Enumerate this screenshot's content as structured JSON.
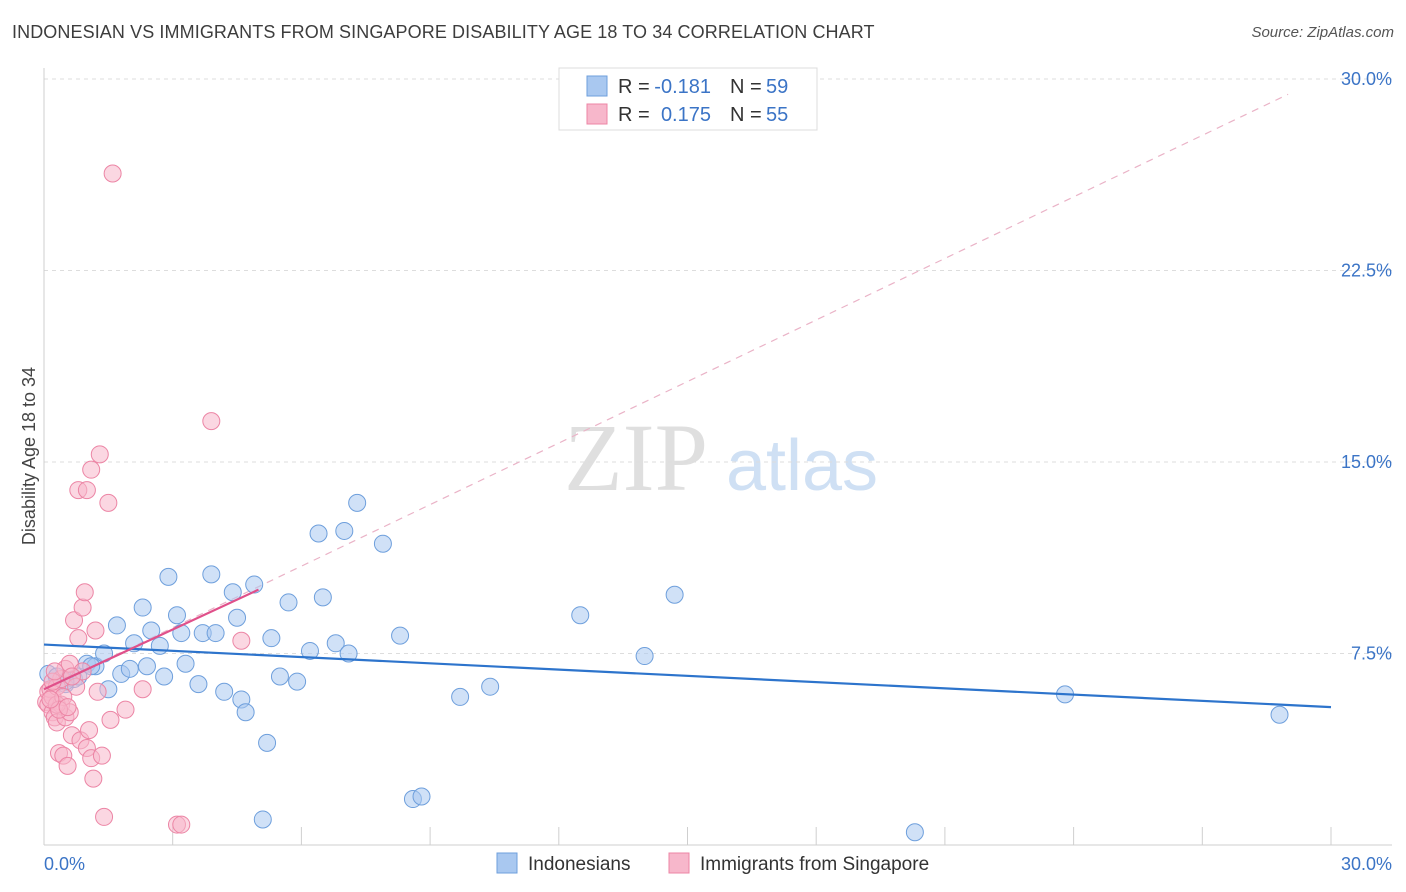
{
  "header": {
    "title": "INDONESIAN VS IMMIGRANTS FROM SINGAPORE DISABILITY AGE 18 TO 34 CORRELATION CHART",
    "source": "Source: ZipAtlas.com"
  },
  "watermark": {
    "zip": "ZIP",
    "atlas": "atlas"
  },
  "colors": {
    "blue_fill": "#a9c8f0",
    "blue_stroke": "#6e9fdc",
    "blue_line": "#2d74cc",
    "pink_fill": "#f7b7cb",
    "pink_stroke": "#ec85a5",
    "pink_line": "#e0508a",
    "grid": "#dddddd",
    "tick_label": "#3b74c6"
  },
  "legend": {
    "r_label": "R =",
    "n_label": "N =",
    "rows": [
      {
        "name": "Indonesians",
        "r": "-0.181",
        "n": "59"
      },
      {
        "name": "Immigrants from Singapore",
        "r": "0.175",
        "n": "55"
      }
    ]
  },
  "chart_data": {
    "type": "scatter",
    "title": "INDONESIAN VS IMMIGRANTS FROM SINGAPORE DISABILITY AGE 18 TO 34 CORRELATION CHART",
    "xlabel": "",
    "ylabel": "Disability Age 18 to 34",
    "xlim": [
      0,
      30
    ],
    "ylim": [
      0,
      30
    ],
    "x_tick_labels": [
      "0.0%",
      "30.0%"
    ],
    "y_ticks": [
      7.5,
      15.0,
      22.5,
      30.0
    ],
    "y_tick_labels": [
      "7.5%",
      "15.0%",
      "22.5%",
      "30.0%"
    ],
    "grid": true,
    "legend_position": "top-center",
    "series": [
      {
        "name": "Indonesians",
        "r": -0.181,
        "n": 59,
        "trend": {
          "x": [
            0.0,
            30.0
          ],
          "y": [
            7.85,
            5.4
          ],
          "style": "solid"
        },
        "points": [
          [
            0.1,
            6.7
          ],
          [
            0.3,
            6.6
          ],
          [
            0.5,
            6.3
          ],
          [
            0.7,
            6.5
          ],
          [
            0.8,
            6.6
          ],
          [
            1.0,
            7.1
          ],
          [
            1.2,
            7.0
          ],
          [
            1.4,
            7.5
          ],
          [
            1.5,
            6.1
          ],
          [
            1.7,
            8.6
          ],
          [
            1.8,
            6.7
          ],
          [
            2.0,
            6.9
          ],
          [
            2.1,
            7.9
          ],
          [
            2.3,
            9.3
          ],
          [
            2.4,
            7.0
          ],
          [
            2.5,
            8.4
          ],
          [
            2.7,
            7.8
          ],
          [
            2.8,
            6.6
          ],
          [
            2.9,
            10.5
          ],
          [
            3.1,
            9.0
          ],
          [
            3.2,
            8.3
          ],
          [
            3.3,
            7.1
          ],
          [
            3.6,
            6.3
          ],
          [
            3.7,
            8.3
          ],
          [
            3.9,
            10.6
          ],
          [
            4.0,
            8.3
          ],
          [
            4.2,
            6.0
          ],
          [
            4.4,
            9.9
          ],
          [
            4.5,
            8.9
          ],
          [
            4.6,
            5.7
          ],
          [
            4.7,
            5.2
          ],
          [
            4.9,
            10.2
          ],
          [
            5.1,
            1.0
          ],
          [
            5.2,
            4.0
          ],
          [
            5.3,
            8.1
          ],
          [
            5.5,
            6.6
          ],
          [
            5.7,
            9.5
          ],
          [
            5.9,
            6.4
          ],
          [
            6.2,
            7.6
          ],
          [
            6.4,
            12.2
          ],
          [
            6.5,
            9.7
          ],
          [
            6.8,
            7.9
          ],
          [
            7.0,
            12.3
          ],
          [
            7.1,
            7.5
          ],
          [
            7.3,
            13.4
          ],
          [
            7.9,
            11.8
          ],
          [
            8.3,
            8.2
          ],
          [
            8.6,
            1.8
          ],
          [
            8.8,
            1.9
          ],
          [
            9.7,
            5.8
          ],
          [
            10.4,
            6.2
          ],
          [
            12.5,
            9.0
          ],
          [
            14.0,
            7.4
          ],
          [
            14.7,
            9.8
          ],
          [
            20.3,
            0.5
          ],
          [
            23.8,
            5.9
          ],
          [
            28.8,
            5.1
          ],
          [
            1.1,
            7.0
          ],
          [
            0.5,
            6.4
          ]
        ]
      },
      {
        "name": "Immigrants from Singapore",
        "r": 0.175,
        "n": 55,
        "trend": {
          "x": [
            0.0,
            5.0
          ],
          "y": [
            6.1,
            10.0
          ],
          "style": "solid"
        },
        "trend_extended": {
          "x": [
            0.0,
            29.0
          ],
          "y": [
            6.1,
            29.4
          ],
          "style": "dashed"
        },
        "points": [
          [
            0.05,
            5.6
          ],
          [
            0.1,
            6.0
          ],
          [
            0.1,
            5.5
          ],
          [
            0.15,
            6.1
          ],
          [
            0.2,
            5.2
          ],
          [
            0.2,
            5.8
          ],
          [
            0.25,
            5.0
          ],
          [
            0.3,
            4.8
          ],
          [
            0.3,
            6.2
          ],
          [
            0.35,
            3.6
          ],
          [
            0.4,
            5.5
          ],
          [
            0.4,
            6.5
          ],
          [
            0.45,
            3.5
          ],
          [
            0.5,
            5.0
          ],
          [
            0.5,
            6.9
          ],
          [
            0.55,
            3.1
          ],
          [
            0.6,
            5.2
          ],
          [
            0.6,
            7.1
          ],
          [
            0.65,
            4.3
          ],
          [
            0.7,
            8.8
          ],
          [
            0.75,
            6.2
          ],
          [
            0.8,
            8.1
          ],
          [
            0.8,
            13.9
          ],
          [
            0.85,
            4.1
          ],
          [
            0.9,
            9.3
          ],
          [
            0.9,
            6.8
          ],
          [
            0.95,
            9.9
          ],
          [
            1.0,
            13.9
          ],
          [
            1.0,
            3.8
          ],
          [
            1.05,
            4.5
          ],
          [
            1.1,
            14.7
          ],
          [
            1.1,
            3.4
          ],
          [
            1.15,
            2.6
          ],
          [
            1.2,
            8.4
          ],
          [
            1.25,
            6.0
          ],
          [
            1.3,
            15.3
          ],
          [
            1.35,
            3.5
          ],
          [
            1.4,
            1.1
          ],
          [
            1.5,
            13.4
          ],
          [
            1.55,
            4.9
          ],
          [
            1.6,
            26.3
          ],
          [
            1.9,
            5.3
          ],
          [
            2.3,
            6.1
          ],
          [
            3.1,
            0.8
          ],
          [
            3.2,
            0.8
          ],
          [
            3.9,
            16.6
          ],
          [
            4.6,
            8.0
          ],
          [
            0.3,
            5.5
          ],
          [
            0.45,
            5.8
          ],
          [
            0.2,
            6.4
          ],
          [
            0.35,
            5.3
          ],
          [
            0.55,
            5.4
          ],
          [
            0.65,
            6.6
          ],
          [
            0.15,
            5.7
          ],
          [
            0.25,
            6.8
          ]
        ]
      }
    ]
  }
}
